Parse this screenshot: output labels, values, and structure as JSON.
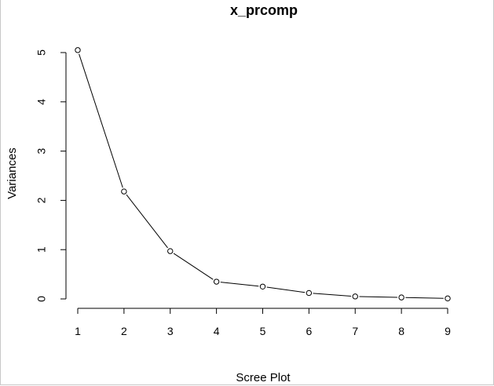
{
  "chart_data": {
    "type": "line",
    "title": "x_prcomp",
    "xlabel": "Scree Plot",
    "ylabel": "Variances",
    "x": [
      1,
      2,
      3,
      4,
      5,
      6,
      7,
      8,
      9
    ],
    "series": [
      {
        "values": [
          5.05,
          2.18,
          0.97,
          0.35,
          0.25,
          0.12,
          0.05,
          0.03,
          0.01
        ]
      }
    ],
    "xticks": [
      "1",
      "2",
      "3",
      "4",
      "5",
      "6",
      "7",
      "8",
      "9"
    ],
    "yticks": [
      "0",
      "1",
      "2",
      "3",
      "4",
      "5"
    ],
    "xlim": [
      1,
      9
    ],
    "ylim": [
      0,
      5
    ],
    "grid": false,
    "marker": "open-circle",
    "line_color": "#000000"
  }
}
